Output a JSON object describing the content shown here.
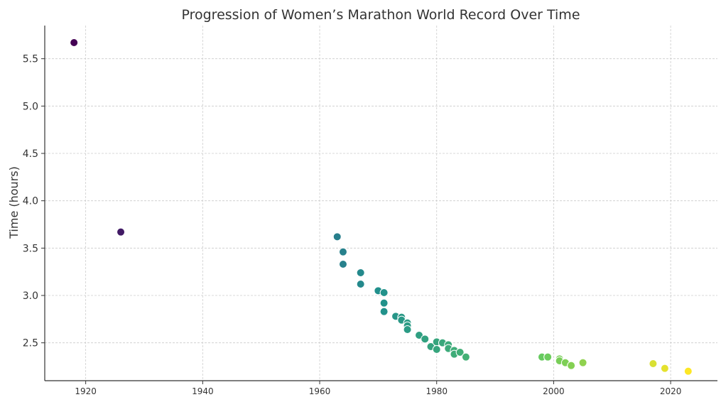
{
  "chart_data": {
    "type": "scatter",
    "title": "Progression of Women’s Marathon World Record Over Time",
    "xlabel": "",
    "ylabel": "Time (hours)",
    "xlim": [
      1913,
      2028
    ],
    "ylim": [
      2.1,
      5.85
    ],
    "x_ticks": [
      1920,
      1940,
      1960,
      1980,
      2000,
      2020
    ],
    "y_ticks": [
      2.5,
      3.0,
      3.5,
      4.0,
      4.5,
      5.0,
      5.5
    ],
    "y_tick_labels": [
      "2.5",
      "3.0",
      "3.5",
      "4.0",
      "4.5",
      "5.0",
      "5.5"
    ],
    "grid": true,
    "colormap": "viridis",
    "x": [
      1918,
      1926,
      1963,
      1964,
      1964,
      1967,
      1967,
      1970,
      1971,
      1971,
      1971,
      1973,
      1974,
      1974,
      1975,
      1975,
      1975,
      1977,
      1978,
      1979,
      1980,
      1980,
      1981,
      1982,
      1982,
      1983,
      1983,
      1984,
      1985,
      1998,
      1999,
      2001,
      2001,
      2002,
      2003,
      2005,
      2017,
      2019,
      2023
    ],
    "y": [
      5.67,
      3.67,
      3.62,
      3.46,
      3.33,
      3.24,
      3.12,
      3.05,
      3.03,
      2.92,
      2.83,
      2.78,
      2.77,
      2.74,
      2.71,
      2.68,
      2.64,
      2.58,
      2.54,
      2.46,
      2.51,
      2.43,
      2.5,
      2.48,
      2.44,
      2.42,
      2.38,
      2.4,
      2.35,
      2.35,
      2.35,
      2.33,
      2.31,
      2.29,
      2.26,
      2.29,
      2.28,
      2.23,
      2.2
    ]
  }
}
